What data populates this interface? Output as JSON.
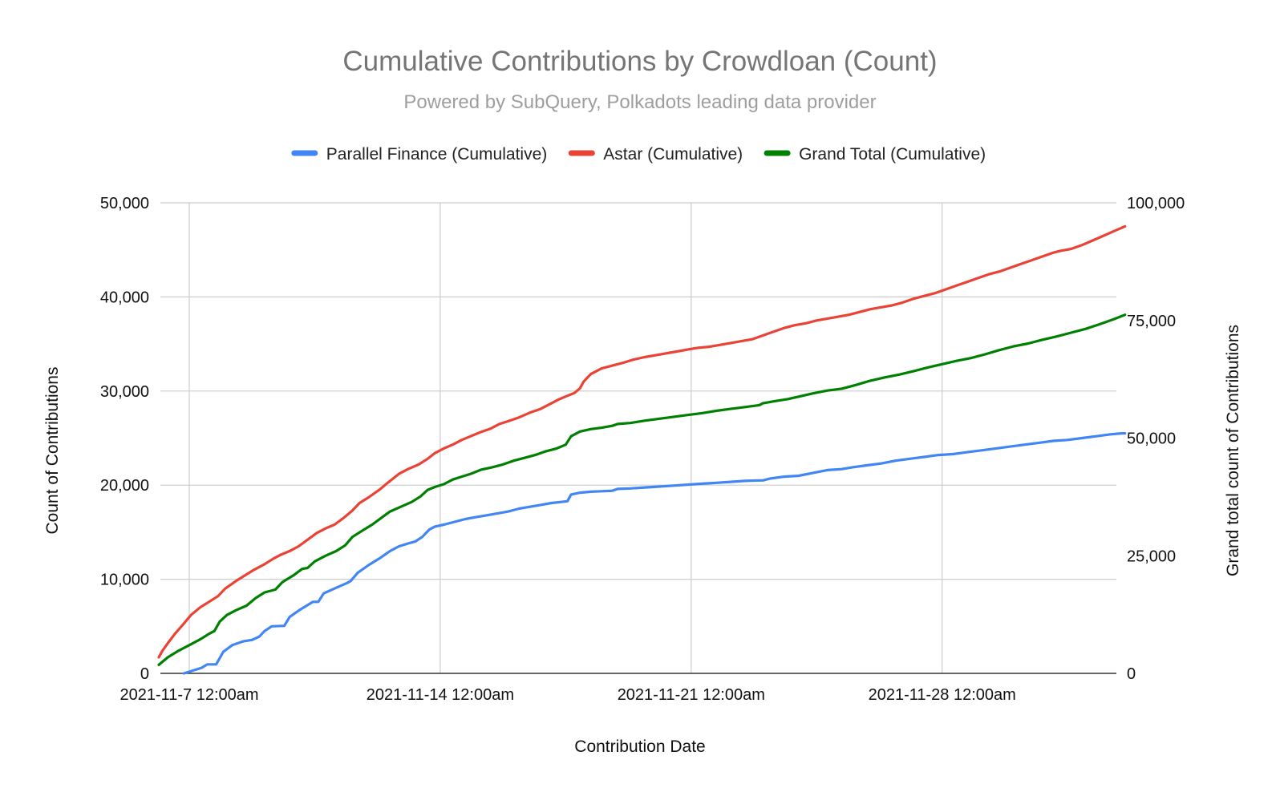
{
  "chart_data": {
    "type": "line",
    "title": "Cumulative Contributions by Crowdloan (Count)",
    "subtitle": "Powered by SubQuery, Polkadots leading data provider",
    "xlabel": "Contribution Date",
    "ylabel_left": "Count of Contributions",
    "ylabel_right": "Grand total count of Contributions",
    "x_range_days": [
      -1,
      27
    ],
    "x_ticks": [
      {
        "day": 0,
        "label": "2021-11-7 12:00am"
      },
      {
        "day": 7,
        "label": "2021-11-14 12:00am"
      },
      {
        "day": 14,
        "label": "2021-11-21 12:00am"
      },
      {
        "day": 21,
        "label": "2021-11-28 12:00am"
      }
    ],
    "ylim_left": [
      0,
      50000
    ],
    "ylim_right": [
      0,
      100000
    ],
    "y_ticks_left": [
      {
        "value": 0,
        "label": "0"
      },
      {
        "value": 10000,
        "label": "10,000"
      },
      {
        "value": 20000,
        "label": "20,000"
      },
      {
        "value": 30000,
        "label": "30,000"
      },
      {
        "value": 40000,
        "label": "40,000"
      },
      {
        "value": 50000,
        "label": "50,000"
      }
    ],
    "y_ticks_right": [
      {
        "value": 0,
        "label": "0"
      },
      {
        "value": 25000,
        "label": "25,000"
      },
      {
        "value": 50000,
        "label": "50,000"
      },
      {
        "value": 75000,
        "label": "75,000"
      },
      {
        "value": 100000,
        "label": "100,000"
      }
    ],
    "legend_position": "top",
    "series": [
      {
        "name": "Parallel Finance (Cumulative)",
        "color": "#4285f4",
        "axis": "left",
        "points": [
          [
            -0.15,
            0
          ],
          [
            0.1,
            300
          ],
          [
            0.35,
            600
          ],
          [
            0.5,
            950
          ],
          [
            0.75,
            950
          ],
          [
            0.95,
            2300
          ],
          [
            1.2,
            3000
          ],
          [
            1.5,
            3400
          ],
          [
            1.75,
            3550
          ],
          [
            1.95,
            3900
          ],
          [
            2.1,
            4500
          ],
          [
            2.3,
            5000
          ],
          [
            2.65,
            5050
          ],
          [
            2.8,
            6000
          ],
          [
            3.1,
            6800
          ],
          [
            3.45,
            7600
          ],
          [
            3.6,
            7600
          ],
          [
            3.75,
            8500
          ],
          [
            4.1,
            9100
          ],
          [
            4.4,
            9600
          ],
          [
            4.5,
            9800
          ],
          [
            4.7,
            10700
          ],
          [
            5.0,
            11500
          ],
          [
            5.3,
            12200
          ],
          [
            5.6,
            13000
          ],
          [
            5.85,
            13500
          ],
          [
            6.1,
            13800
          ],
          [
            6.3,
            14000
          ],
          [
            6.5,
            14500
          ],
          [
            6.7,
            15300
          ],
          [
            6.85,
            15600
          ],
          [
            7.1,
            15800
          ],
          [
            7.4,
            16100
          ],
          [
            7.7,
            16400
          ],
          [
            8.0,
            16600
          ],
          [
            8.3,
            16800
          ],
          [
            8.6,
            17000
          ],
          [
            8.9,
            17200
          ],
          [
            9.2,
            17500
          ],
          [
            9.5,
            17700
          ],
          [
            9.8,
            17900
          ],
          [
            10.1,
            18100
          ],
          [
            10.35,
            18200
          ],
          [
            10.55,
            18300
          ],
          [
            10.65,
            19000
          ],
          [
            10.9,
            19200
          ],
          [
            11.2,
            19300
          ],
          [
            11.5,
            19350
          ],
          [
            11.8,
            19400
          ],
          [
            11.95,
            19600
          ],
          [
            12.3,
            19650
          ],
          [
            12.7,
            19750
          ],
          [
            13.1,
            19850
          ],
          [
            13.5,
            19950
          ],
          [
            13.9,
            20050
          ],
          [
            14.3,
            20150
          ],
          [
            14.7,
            20250
          ],
          [
            15.1,
            20350
          ],
          [
            15.5,
            20450
          ],
          [
            15.9,
            20500
          ],
          [
            16.0,
            20500
          ],
          [
            16.2,
            20700
          ],
          [
            16.6,
            20900
          ],
          [
            17.0,
            21000
          ],
          [
            17.4,
            21300
          ],
          [
            17.8,
            21600
          ],
          [
            18.2,
            21700
          ],
          [
            18.5,
            21900
          ],
          [
            18.9,
            22100
          ],
          [
            19.3,
            22300
          ],
          [
            19.7,
            22600
          ],
          [
            20.1,
            22800
          ],
          [
            20.5,
            23000
          ],
          [
            20.9,
            23200
          ],
          [
            21.3,
            23300
          ],
          [
            21.7,
            23500
          ],
          [
            22.1,
            23700
          ],
          [
            22.5,
            23900
          ],
          [
            22.9,
            24100
          ],
          [
            23.3,
            24300
          ],
          [
            23.7,
            24500
          ],
          [
            24.1,
            24700
          ],
          [
            24.5,
            24800
          ],
          [
            24.9,
            25000
          ],
          [
            25.3,
            25200
          ],
          [
            25.7,
            25400
          ],
          [
            26.0,
            25500
          ],
          [
            26.1,
            25500
          ]
        ]
      },
      {
        "name": "Astar (Cumulative)",
        "color": "#ea4335",
        "axis": "left",
        "points": [
          [
            -0.85,
            1700
          ],
          [
            -0.75,
            2400
          ],
          [
            -0.6,
            3200
          ],
          [
            -0.4,
            4200
          ],
          [
            -0.15,
            5300
          ],
          [
            0.05,
            6200
          ],
          [
            0.3,
            7000
          ],
          [
            0.55,
            7600
          ],
          [
            0.8,
            8200
          ],
          [
            1.0,
            9000
          ],
          [
            1.3,
            9800
          ],
          [
            1.55,
            10400
          ],
          [
            1.8,
            11000
          ],
          [
            2.1,
            11600
          ],
          [
            2.35,
            12200
          ],
          [
            2.55,
            12600
          ],
          [
            2.8,
            13000
          ],
          [
            3.05,
            13500
          ],
          [
            3.3,
            14200
          ],
          [
            3.55,
            14900
          ],
          [
            3.8,
            15400
          ],
          [
            4.05,
            15800
          ],
          [
            4.3,
            16500
          ],
          [
            4.55,
            17300
          ],
          [
            4.75,
            18100
          ],
          [
            5.0,
            18700
          ],
          [
            5.3,
            19500
          ],
          [
            5.55,
            20300
          ],
          [
            5.85,
            21200
          ],
          [
            6.1,
            21700
          ],
          [
            6.4,
            22200
          ],
          [
            6.65,
            22800
          ],
          [
            6.85,
            23400
          ],
          [
            7.1,
            23900
          ],
          [
            7.35,
            24300
          ],
          [
            7.6,
            24800
          ],
          [
            7.85,
            25200
          ],
          [
            8.1,
            25600
          ],
          [
            8.4,
            26000
          ],
          [
            8.65,
            26500
          ],
          [
            8.9,
            26800
          ],
          [
            9.2,
            27200
          ],
          [
            9.5,
            27700
          ],
          [
            9.8,
            28100
          ],
          [
            10.0,
            28500
          ],
          [
            10.3,
            29100
          ],
          [
            10.55,
            29500
          ],
          [
            10.75,
            29800
          ],
          [
            10.9,
            30300
          ],
          [
            11.0,
            31000
          ],
          [
            11.2,
            31800
          ],
          [
            11.5,
            32400
          ],
          [
            11.8,
            32700
          ],
          [
            12.1,
            33000
          ],
          [
            12.35,
            33300
          ],
          [
            12.7,
            33600
          ],
          [
            13.0,
            33800
          ],
          [
            13.3,
            34000
          ],
          [
            13.6,
            34200
          ],
          [
            13.9,
            34400
          ],
          [
            14.2,
            34600
          ],
          [
            14.5,
            34700
          ],
          [
            14.8,
            34900
          ],
          [
            15.1,
            35100
          ],
          [
            15.4,
            35300
          ],
          [
            15.7,
            35500
          ],
          [
            16.0,
            35900
          ],
          [
            16.3,
            36300
          ],
          [
            16.6,
            36700
          ],
          [
            16.9,
            37000
          ],
          [
            17.2,
            37200
          ],
          [
            17.5,
            37500
          ],
          [
            17.8,
            37700
          ],
          [
            18.1,
            37900
          ],
          [
            18.4,
            38100
          ],
          [
            18.7,
            38400
          ],
          [
            19.0,
            38700
          ],
          [
            19.3,
            38900
          ],
          [
            19.6,
            39100
          ],
          [
            19.9,
            39400
          ],
          [
            20.2,
            39800
          ],
          [
            20.5,
            40100
          ],
          [
            20.8,
            40400
          ],
          [
            21.1,
            40800
          ],
          [
            21.4,
            41200
          ],
          [
            21.7,
            41600
          ],
          [
            22.0,
            42000
          ],
          [
            22.3,
            42400
          ],
          [
            22.6,
            42700
          ],
          [
            22.9,
            43100
          ],
          [
            23.2,
            43500
          ],
          [
            23.5,
            43900
          ],
          [
            23.8,
            44300
          ],
          [
            24.1,
            44700
          ],
          [
            24.3,
            44900
          ],
          [
            24.6,
            45100
          ],
          [
            24.9,
            45500
          ],
          [
            25.2,
            46000
          ],
          [
            25.5,
            46500
          ],
          [
            25.8,
            47000
          ],
          [
            26.1,
            47500
          ]
        ]
      },
      {
        "name": "Grand Total (Cumulative)",
        "color": "#008000",
        "axis": "right",
        "points": [
          [
            -0.85,
            1800
          ],
          [
            -0.6,
            3400
          ],
          [
            -0.3,
            4800
          ],
          [
            0.0,
            6000
          ],
          [
            0.3,
            7200
          ],
          [
            0.55,
            8400
          ],
          [
            0.7,
            9000
          ],
          [
            0.85,
            11000
          ],
          [
            1.05,
            12400
          ],
          [
            1.3,
            13400
          ],
          [
            1.6,
            14400
          ],
          [
            1.85,
            16000
          ],
          [
            2.1,
            17200
          ],
          [
            2.4,
            17800
          ],
          [
            2.6,
            19400
          ],
          [
            2.9,
            20800
          ],
          [
            3.15,
            22200
          ],
          [
            3.3,
            22400
          ],
          [
            3.5,
            23800
          ],
          [
            3.8,
            25000
          ],
          [
            4.1,
            26000
          ],
          [
            4.35,
            27200
          ],
          [
            4.55,
            29000
          ],
          [
            4.8,
            30200
          ],
          [
            5.1,
            31600
          ],
          [
            5.35,
            33000
          ],
          [
            5.6,
            34400
          ],
          [
            5.9,
            35400
          ],
          [
            6.2,
            36400
          ],
          [
            6.45,
            37600
          ],
          [
            6.65,
            39000
          ],
          [
            6.85,
            39600
          ],
          [
            7.1,
            40200
          ],
          [
            7.35,
            41200
          ],
          [
            7.6,
            41800
          ],
          [
            7.85,
            42400
          ],
          [
            8.15,
            43300
          ],
          [
            8.45,
            43800
          ],
          [
            8.75,
            44400
          ],
          [
            9.05,
            45200
          ],
          [
            9.35,
            45800
          ],
          [
            9.65,
            46400
          ],
          [
            9.95,
            47200
          ],
          [
            10.25,
            47800
          ],
          [
            10.5,
            48600
          ],
          [
            10.65,
            50400
          ],
          [
            10.9,
            51400
          ],
          [
            11.2,
            51900
          ],
          [
            11.5,
            52200
          ],
          [
            11.8,
            52600
          ],
          [
            11.95,
            53000
          ],
          [
            12.3,
            53200
          ],
          [
            12.7,
            53700
          ],
          [
            13.1,
            54100
          ],
          [
            13.5,
            54500
          ],
          [
            13.9,
            54900
          ],
          [
            14.3,
            55300
          ],
          [
            14.7,
            55800
          ],
          [
            15.1,
            56200
          ],
          [
            15.5,
            56600
          ],
          [
            15.9,
            57000
          ],
          [
            16.0,
            57400
          ],
          [
            16.3,
            57800
          ],
          [
            16.7,
            58300
          ],
          [
            17.0,
            58800
          ],
          [
            17.4,
            59500
          ],
          [
            17.8,
            60100
          ],
          [
            18.2,
            60500
          ],
          [
            18.6,
            61300
          ],
          [
            19.0,
            62200
          ],
          [
            19.4,
            62900
          ],
          [
            19.8,
            63500
          ],
          [
            20.2,
            64200
          ],
          [
            20.6,
            65000
          ],
          [
            21.0,
            65700
          ],
          [
            21.4,
            66400
          ],
          [
            21.8,
            67000
          ],
          [
            22.2,
            67800
          ],
          [
            22.6,
            68700
          ],
          [
            23.0,
            69500
          ],
          [
            23.4,
            70100
          ],
          [
            23.8,
            70900
          ],
          [
            24.2,
            71600
          ],
          [
            24.6,
            72400
          ],
          [
            25.0,
            73200
          ],
          [
            25.4,
            74200
          ],
          [
            25.8,
            75300
          ],
          [
            26.1,
            76200
          ]
        ]
      }
    ]
  }
}
